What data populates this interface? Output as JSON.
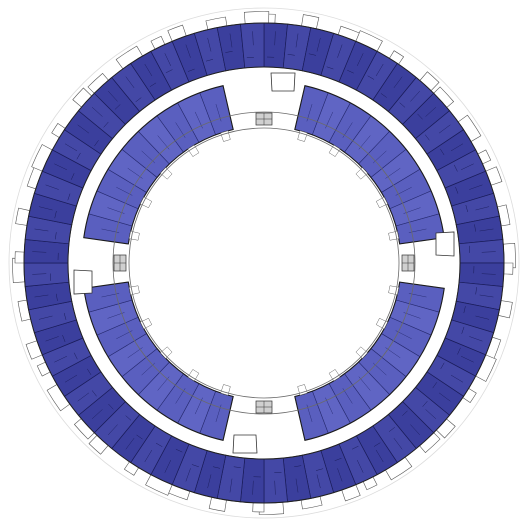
{
  "plan": {
    "outer_ring": {
      "unit_count": 64,
      "fill": "#3b3f9d",
      "fill_alt": "#4448a6",
      "line": "#1a1c5a"
    },
    "inner_ring": {
      "segments": [
        {
          "name": "inner-segment-north-east",
          "units": 9
        },
        {
          "name": "inner-segment-south-east",
          "units": 9
        },
        {
          "name": "inner-segment-south-west",
          "units": 9
        },
        {
          "name": "inner-segment-north-west",
          "units": 9
        }
      ],
      "fill": "#5a5fbf",
      "fill_alt": "#6065c4",
      "line": "#262a70"
    },
    "courtyard": {
      "line": "#6a6a6a"
    },
    "cores": {
      "fill": "#d0d0d0",
      "line": "#333333"
    },
    "background": "#ffffff"
  }
}
